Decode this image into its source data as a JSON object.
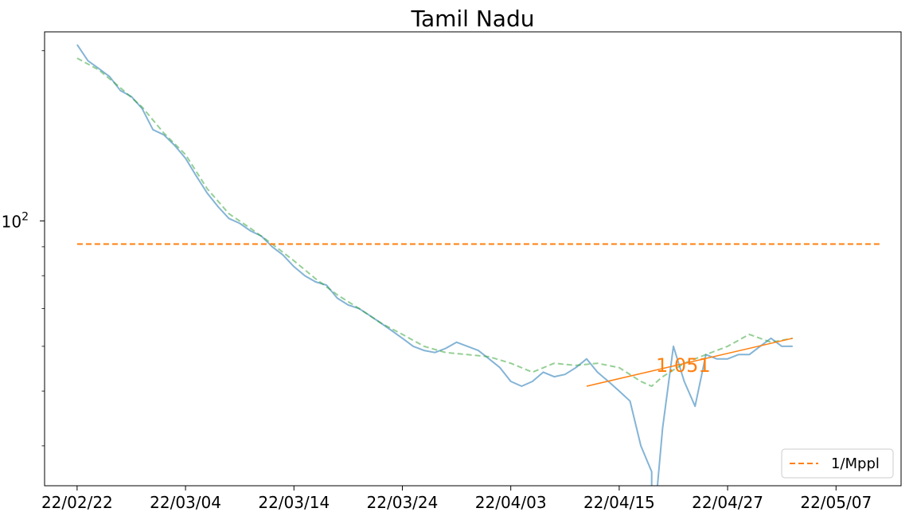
{
  "chart_data": {
    "type": "line",
    "title": "Tamil Nadu",
    "xlabel": "",
    "ylabel": "",
    "yscale": "log",
    "ylim": [
      34,
      216
    ],
    "xlim": [
      "2022-02-19",
      "2022-05-09"
    ],
    "x_ticks": [
      "22/02/22",
      "22/03/04",
      "22/03/14",
      "22/03/24",
      "22/04/03",
      "22/04/15",
      "22/04/27",
      "22/05/07"
    ],
    "x_tick_dates": [
      "2022-02-22",
      "2022-03-04",
      "2022-03-14",
      "2022-03-24",
      "2022-04-03",
      "2022-04-13",
      "2022-04-23",
      "2022-05-03"
    ],
    "y_ticks": [
      {
        "value": 100,
        "base": "10",
        "exponent": "2"
      }
    ],
    "grid": false,
    "legend": {
      "position": "lower-right",
      "entries": [
        "1/Mppl"
      ]
    },
    "colors": {
      "daily": "#1f77b4",
      "smoothed": "#2ca02c",
      "reference": "#ff7f0e",
      "trend": "#ff7f0e"
    },
    "series": [
      {
        "style": "solid",
        "x": [
          "2022-02-22",
          "2022-02-23",
          "2022-02-24",
          "2022-02-25",
          "2022-02-26",
          "2022-02-27",
          "2022-02-28",
          "2022-03-01",
          "2022-03-02",
          "2022-03-03",
          "2022-03-04",
          "2022-03-05",
          "2022-03-06",
          "2022-03-07",
          "2022-03-08",
          "2022-03-09",
          "2022-03-10",
          "2022-03-11",
          "2022-03-12",
          "2022-03-13",
          "2022-03-14",
          "2022-03-15",
          "2022-03-16",
          "2022-03-17",
          "2022-03-18",
          "2022-03-19",
          "2022-03-20",
          "2022-03-21",
          "2022-03-22",
          "2022-03-23",
          "2022-03-24",
          "2022-03-25",
          "2022-03-26",
          "2022-03-27",
          "2022-03-28",
          "2022-03-29",
          "2022-03-30",
          "2022-03-31",
          "2022-04-01",
          "2022-04-02",
          "2022-04-03",
          "2022-04-04",
          "2022-04-05",
          "2022-04-06",
          "2022-04-07",
          "2022-04-08",
          "2022-04-09",
          "2022-04-10",
          "2022-04-11",
          "2022-04-12",
          "2022-04-13",
          "2022-04-14",
          "2022-04-15",
          "2022-04-16",
          "2022-04-17",
          "2022-04-18",
          "2022-04-19",
          "2022-04-20",
          "2022-04-21",
          "2022-04-22",
          "2022-04-23",
          "2022-04-24",
          "2022-04-25",
          "2022-04-26",
          "2022-04-27",
          "2022-04-28",
          "2022-04-29"
        ],
        "values": [
          205,
          192,
          186,
          180,
          170,
          166,
          158,
          145,
          142,
          136,
          129,
          120,
          112,
          106,
          101,
          99,
          96,
          94,
          90,
          87,
          83,
          80,
          78,
          77,
          73,
          71,
          70,
          68,
          66,
          64,
          62,
          60,
          59,
          58.5,
          59.5,
          61,
          60,
          59,
          57,
          55,
          52,
          51,
          52,
          54,
          53,
          53.5,
          55,
          57,
          54,
          52,
          50,
          48,
          40,
          36,
          43,
          60,
          52,
          47,
          58,
          57,
          57,
          58,
          58,
          60,
          62,
          60,
          60
        ],
        "breaks_after": [
          "2022-04-16"
        ],
        "note_sparse": "values 2022-04-05..2022-04-16 estimated from jagged trace"
      },
      {
        "style": "dashed",
        "x": [
          "2022-02-22",
          "2022-02-24",
          "2022-02-26",
          "2022-02-28",
          "2022-03-02",
          "2022-03-04",
          "2022-03-06",
          "2022-03-08",
          "2022-03-10",
          "2022-03-12",
          "2022-03-14",
          "2022-03-16",
          "2022-03-18",
          "2022-03-20",
          "2022-03-22",
          "2022-03-24",
          "2022-03-26",
          "2022-03-28",
          "2022-03-30",
          "2022-04-01",
          "2022-04-03",
          "2022-04-05",
          "2022-04-07",
          "2022-04-09",
          "2022-04-11",
          "2022-04-13",
          "2022-04-15",
          "2022-04-16",
          "2022-04-17",
          "2022-04-19",
          "2022-04-21",
          "2022-04-23",
          "2022-04-25",
          "2022-04-27",
          "2022-04-29"
        ],
        "values": [
          194,
          185,
          172,
          159,
          143,
          131,
          114,
          103,
          97,
          91,
          85,
          79,
          74,
          70,
          66,
          63,
          60,
          58.5,
          58,
          57.5,
          56,
          54,
          56,
          55.5,
          56,
          55,
          52,
          51,
          53,
          56,
          58,
          60,
          63,
          61,
          62
        ]
      },
      {
        "style": "dashed",
        "x": [
          "2022-02-22",
          "2022-05-07"
        ],
        "values": [
          91,
          91
        ]
      },
      {
        "style": "solid",
        "x": [
          "2022-04-10",
          "2022-04-29"
        ],
        "values": [
          51,
          62
        ]
      }
    ],
    "annotations": [
      {
        "text": "1.051",
        "x": "2022-04-18",
        "y": 55.5,
        "color": "#ff7f0e"
      }
    ]
  }
}
